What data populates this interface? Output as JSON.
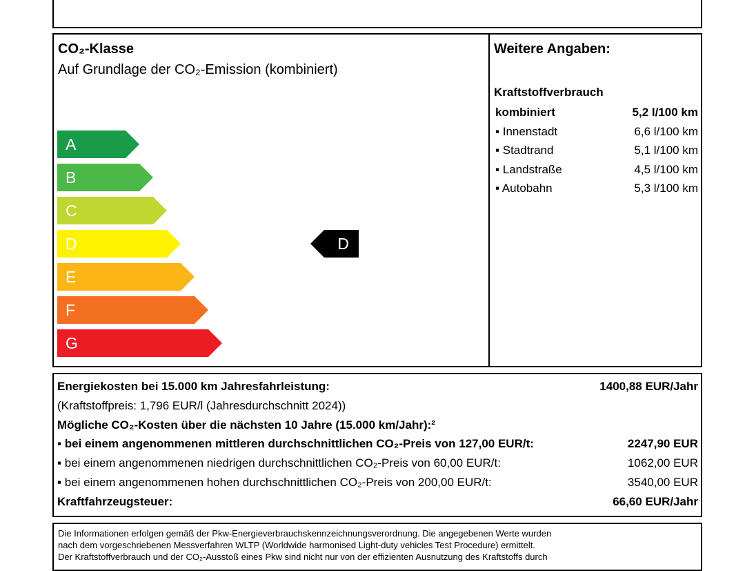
{
  "header": {
    "title": "CO₂-Klasse",
    "subtitle": "Auf Grundlage der CO₂-Emission (kombiniert)"
  },
  "classes": [
    "A",
    "B",
    "C",
    "D",
    "E",
    "F",
    "G"
  ],
  "current_class": "D",
  "further": {
    "title": "Weitere Angaben:",
    "section": "Kraftstoffverbrauch",
    "rows": [
      [
        "kombiniert",
        "5,2 l/100 km"
      ],
      [
        "▪ Innenstadt",
        "6,6 l/100 km"
      ],
      [
        "▪ Stadtrand",
        "5,1 l/100 km"
      ],
      [
        "▪ Landstraße",
        "4,5 l/100 km"
      ],
      [
        "▪ Autobahn",
        "5,3 l/100 km"
      ]
    ]
  },
  "costs": {
    "rows": [
      [
        "Energiekosten bei 15.000 km Jahresfahrleistung:",
        "1400,88 EUR/Jahr"
      ],
      [
        "(Kraftstoffpreis: 1,796 EUR/l (Jahresdurchschnitt 2024))"
      ],
      [
        "Mögliche CO₂-Kosten über die nächsten 10 Jahre (15.000 km/Jahr):²"
      ],
      [
        "▪ bei einem angenommenen mittleren durchschnittlichen CO₂-Preis von 127,00 EUR/t:",
        "2247,90 EUR"
      ],
      [
        "▪ bei einem angenommenen niedrigen durchschnittlichen CO₂-Preis von 60,00 EUR/t:",
        "1062,00 EUR"
      ],
      [
        "▪ bei einem angenommenen hohen durchschnittlichen CO₂-Preis von 200,00 EUR/t:",
        "3540,00 EUR"
      ],
      [
        "Kraftfahrzeugsteuer:",
        "66,60 EUR/Jahr"
      ]
    ]
  },
  "footer": {
    "lines": [
      "Die Informationen erfolgen gemäß der Pkw-Energieverbrauchskennzeichnungsverordnung. Die angegebenen Werte wurden",
      "nach dem vorgeschriebenen Messverfahren WLTP (Worldwide harmonised Light-duty vehicles Test Procedure) ermittelt.",
      "Der Kraftstoffverbrauch und der CO₂-Ausstoß eines Pkw sind nicht nur von der effizienten Ausnutzung des Kraftstoffs durch"
    ]
  }
}
